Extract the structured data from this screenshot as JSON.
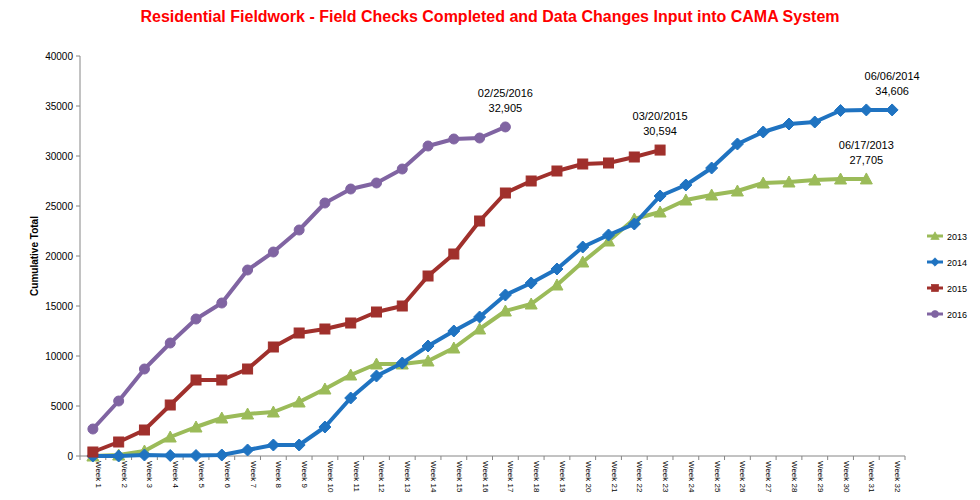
{
  "chart_data": {
    "type": "line",
    "title": "Residential Fieldwork - Field Checks Completed and Data Changes Input into CAMA System",
    "y_label": "Cumulative Total",
    "categories": [
      "Week 1",
      "Week 2",
      "Week 3",
      "Week 4",
      "Week 5",
      "Week 6",
      "Week 7",
      "Week 8",
      "Week 9",
      "Week 10",
      "Week 11",
      "Week 12",
      "Week 13",
      "Week 14",
      "Week 15",
      "Week 16",
      "Week 17",
      "Week 18",
      "Week 19",
      "Week 20",
      "Week 21",
      "Week 22",
      "Week 23",
      "Week 24",
      "Week 25",
      "Week 26",
      "Week 27",
      "Week 28",
      "Week 29",
      "Week 30",
      "Week 31",
      "Week 32"
    ],
    "ylim": [
      0,
      40000
    ],
    "yticks": [
      0,
      5000,
      10000,
      15000,
      20000,
      25000,
      30000,
      35000,
      40000
    ],
    "grid": false,
    "legend": "right",
    "series": [
      {
        "name": "2013",
        "color": "#9bbb59",
        "marker": "triangle",
        "values": [
          0,
          100,
          500,
          1900,
          2900,
          3800,
          4200,
          4400,
          5400,
          6700,
          8100,
          9200,
          9200,
          9500,
          10800,
          12700,
          14500,
          15200,
          17100,
          19400,
          21500,
          23700,
          24400,
          25600,
          26100,
          26500,
          27300,
          27400,
          27600,
          27700,
          27705,
          null
        ]
      },
      {
        "name": "2014",
        "color": "#1f73c1",
        "marker": "diamond",
        "values": [
          0,
          0,
          100,
          50,
          50,
          100,
          600,
          1100,
          1100,
          2900,
          5800,
          8000,
          9300,
          11000,
          12500,
          13900,
          16100,
          17300,
          18700,
          20900,
          22100,
          23200,
          26000,
          27100,
          28800,
          31200,
          32400,
          33200,
          33400,
          34550,
          34606,
          34606
        ]
      },
      {
        "name": "2015",
        "color": "#a0302c",
        "marker": "square",
        "values": [
          400,
          1400,
          2600,
          5100,
          7600,
          7600,
          8700,
          10900,
          12300,
          12700,
          13300,
          14400,
          15000,
          18000,
          20200,
          23500,
          26300,
          27500,
          28500,
          29200,
          29300,
          29900,
          30594,
          null,
          null,
          null,
          null,
          null,
          null,
          null,
          null,
          null
        ]
      },
      {
        "name": "2016",
        "color": "#8064a2",
        "marker": "circle",
        "values": [
          2700,
          5500,
          8700,
          11300,
          13700,
          15300,
          18600,
          20400,
          22600,
          25300,
          26700,
          27300,
          28700,
          31000,
          31700,
          31800,
          32905,
          null,
          null,
          null,
          null,
          null,
          null,
          null,
          null,
          null,
          null,
          null,
          null,
          null,
          null,
          null
        ]
      }
    ],
    "annotations": [
      {
        "date": "02/25/2016",
        "label": "32,905",
        "value": 32905,
        "x": "Week 17"
      },
      {
        "date": "03/20/2015",
        "label": "30,594",
        "value": 30594,
        "x": "Week 23"
      },
      {
        "date": "06/06/2014",
        "label": "34,606",
        "value": 34606,
        "x": "Week 32"
      },
      {
        "date": "06/17/2013",
        "label": "27,705",
        "value": 27705,
        "x": "Week 31"
      }
    ]
  }
}
